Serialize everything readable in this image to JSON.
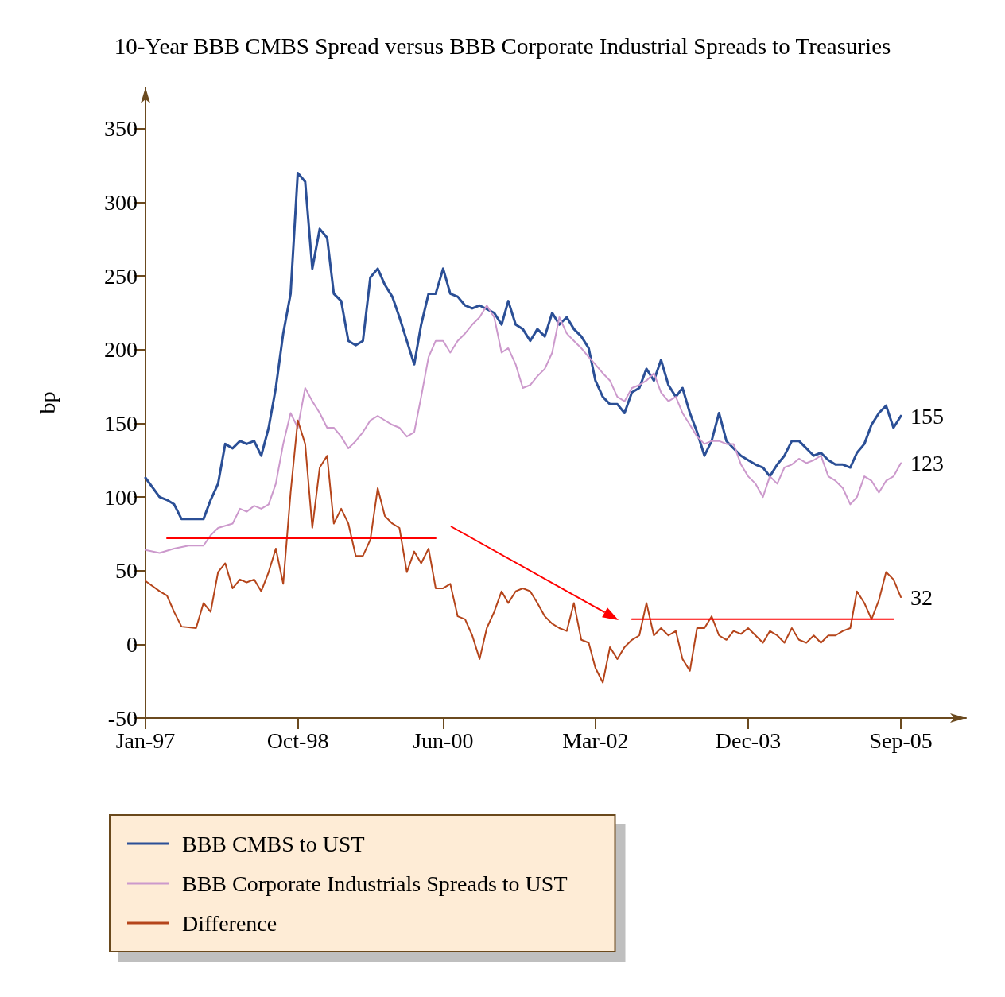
{
  "chart_data": {
    "type": "line",
    "title": "10-Year BBB CMBS Spread versus BBB Corporate Industrial Spreads to Treasuries",
    "ylabel": "bp",
    "xlim": [
      "1997-01",
      "2006-06"
    ],
    "xticks": [
      {
        "value": "1997-01",
        "label": "Jan-97"
      },
      {
        "value": "1998-10",
        "label": "Oct-98"
      },
      {
        "value": "2000-06",
        "label": "Jun-00"
      },
      {
        "value": "2002-03",
        "label": "Mar-02"
      },
      {
        "value": "2003-12",
        "label": "Dec-03"
      },
      {
        "value": "2005-09",
        "label": "Sep-05"
      }
    ],
    "ylim": [
      -50,
      378
    ],
    "yticks": [
      -50,
      0,
      50,
      100,
      150,
      200,
      250,
      300,
      350
    ],
    "grid": false,
    "legend": "bottom left",
    "marker": "none",
    "line_style": "solid",
    "annotations": [
      {
        "text": "155",
        "x": "2005-09",
        "y": 155
      },
      {
        "text": "123",
        "x": "2005-09",
        "y": 123
      },
      {
        "text": "32",
        "x": "2005-09",
        "y": 32
      }
    ],
    "series": [
      {
        "name": "BBB CMBS to UST",
        "color": "#2b4f96",
        "x": [
          "1997-01",
          "1997-03",
          "1997-04",
          "1997-05",
          "1997-06",
          "1997-09",
          "1997-10",
          "1997-11",
          "1997-12",
          "1998-01",
          "1998-02",
          "1998-03",
          "1998-04",
          "1998-05",
          "1998-06",
          "1998-07",
          "1998-08",
          "1998-09",
          "1998-10",
          "1998-11",
          "1998-12",
          "1999-01",
          "1999-02",
          "1999-03",
          "1999-04",
          "1999-05",
          "1999-06",
          "1999-07",
          "1999-08",
          "1999-09",
          "1999-10",
          "1999-11",
          "1999-12",
          "2000-01",
          "2000-02",
          "2000-03",
          "2000-04",
          "2000-05",
          "2000-06",
          "2000-07",
          "2000-08",
          "2000-09",
          "2000-10",
          "2000-11",
          "2001-01",
          "2001-02",
          "2001-03",
          "2001-04",
          "2001-05",
          "2001-06",
          "2001-07",
          "2001-08",
          "2001-09",
          "2001-10",
          "2001-11",
          "2001-12",
          "2002-01",
          "2002-02",
          "2002-03",
          "2002-04",
          "2002-05",
          "2002-06",
          "2002-07",
          "2002-08",
          "2002-09",
          "2002-10",
          "2002-11",
          "2002-12",
          "2003-01",
          "2003-02",
          "2003-03",
          "2003-04",
          "2003-05",
          "2003-06",
          "2003-07",
          "2003-08",
          "2003-09",
          "2003-10",
          "2003-11",
          "2003-12",
          "2004-01",
          "2004-02",
          "2004-03",
          "2004-04",
          "2004-05",
          "2004-06",
          "2004-07",
          "2004-08",
          "2004-09",
          "2004-10",
          "2004-11",
          "2004-12",
          "2005-01",
          "2005-02",
          "2005-03",
          "2005-04",
          "2005-05",
          "2005-06",
          "2005-07",
          "2005-08",
          "2005-09"
        ],
        "values": [
          113,
          100,
          98,
          95,
          85,
          85,
          98,
          109,
          136,
          133,
          138,
          136,
          138,
          128,
          147,
          174,
          211,
          238,
          320,
          314,
          255,
          282,
          276,
          238,
          233,
          206,
          203,
          206,
          249,
          255,
          244,
          236,
          222,
          206,
          190,
          217,
          238,
          238,
          255,
          238,
          236,
          230,
          228,
          230,
          225,
          217,
          233,
          217,
          214,
          206,
          214,
          209,
          225,
          217,
          222,
          214,
          209,
          201,
          179,
          168,
          163,
          163,
          157,
          171,
          174,
          187,
          179,
          193,
          176,
          168,
          174,
          157,
          144,
          128,
          138,
          157,
          138,
          133,
          128,
          125,
          122,
          120,
          114,
          122,
          128,
          138,
          138,
          133,
          128,
          130,
          125,
          122,
          122,
          120,
          130,
          136,
          149,
          157,
          162,
          147,
          155
        ]
      },
      {
        "name": "BBB Corporate Industrials Spreads to UST",
        "color": "#cc99cc",
        "x": [
          "1997-01",
          "1997-03",
          "1997-05",
          "1997-07",
          "1997-09",
          "1997-10",
          "1997-11",
          "1998-01",
          "1998-02",
          "1998-03",
          "1998-04",
          "1998-05",
          "1998-06",
          "1998-07",
          "1998-08",
          "1998-09",
          "1998-10",
          "1998-11",
          "1998-12",
          "1999-01",
          "1999-02",
          "1999-03",
          "1999-04",
          "1999-05",
          "1999-06",
          "1999-07",
          "1999-08",
          "1999-09",
          "1999-10",
          "1999-11",
          "1999-12",
          "2000-01",
          "2000-02",
          "2000-03",
          "2000-04",
          "2000-05",
          "2000-06",
          "2000-07",
          "2000-08",
          "2000-09",
          "2000-10",
          "2000-11",
          "2000-12",
          "2001-01",
          "2001-02",
          "2001-03",
          "2001-04",
          "2001-05",
          "2001-06",
          "2001-07",
          "2001-08",
          "2001-09",
          "2001-10",
          "2001-11",
          "2001-12",
          "2002-01",
          "2002-02",
          "2002-03",
          "2002-04",
          "2002-05",
          "2002-06",
          "2002-07",
          "2002-08",
          "2002-09",
          "2002-10",
          "2002-11",
          "2002-12",
          "2003-01",
          "2003-02",
          "2003-03",
          "2003-04",
          "2003-05",
          "2003-06",
          "2003-07",
          "2003-08",
          "2003-09",
          "2003-10",
          "2003-11",
          "2003-12",
          "2004-01",
          "2004-02",
          "2004-03",
          "2004-04",
          "2004-05",
          "2004-06",
          "2004-07",
          "2004-08",
          "2004-09",
          "2004-10",
          "2004-11",
          "2004-12",
          "2005-01",
          "2005-02",
          "2005-03",
          "2005-04",
          "2005-05",
          "2005-06",
          "2005-07",
          "2005-08",
          "2005-09"
        ],
        "values": [
          64,
          62,
          65,
          67,
          67,
          74,
          79,
          82,
          92,
          90,
          94,
          92,
          95,
          109,
          136,
          157,
          147,
          174,
          165,
          157,
          147,
          147,
          141,
          133,
          138,
          144,
          152,
          155,
          152,
          149,
          147,
          141,
          144,
          168,
          195,
          206,
          206,
          198,
          206,
          211,
          217,
          222,
          230,
          222,
          198,
          201,
          190,
          174,
          176,
          182,
          187,
          198,
          222,
          211,
          206,
          201,
          195,
          190,
          184,
          179,
          168,
          165,
          174,
          176,
          179,
          184,
          171,
          165,
          168,
          157,
          149,
          141,
          136,
          138,
          138,
          136,
          136,
          122,
          114,
          109,
          100,
          114,
          109,
          120,
          122,
          126,
          123,
          125,
          128,
          114,
          111,
          106,
          95,
          100,
          114,
          111,
          103,
          111,
          114,
          123
        ]
      },
      {
        "name": "Difference",
        "color": "#b5451b",
        "x": [
          "1997-01",
          "1997-03",
          "1997-04",
          "1997-05",
          "1997-06",
          "1997-08",
          "1997-09",
          "1997-10",
          "1997-11",
          "1997-12",
          "1998-01",
          "1998-02",
          "1998-03",
          "1998-04",
          "1998-05",
          "1998-06",
          "1998-07",
          "1998-08",
          "1998-09",
          "1998-10",
          "1998-11",
          "1998-12",
          "1999-01",
          "1999-02",
          "1999-03",
          "1999-04",
          "1999-05",
          "1999-06",
          "1999-07",
          "1999-08",
          "1999-09",
          "1999-10",
          "1999-11",
          "1999-12",
          "2000-01",
          "2000-02",
          "2000-03",
          "2000-04",
          "2000-05",
          "2000-06",
          "2000-07",
          "2000-08",
          "2000-09",
          "2000-10",
          "2000-11",
          "2000-12",
          "2001-01",
          "2001-02",
          "2001-03",
          "2001-04",
          "2001-05",
          "2001-06",
          "2001-07",
          "2001-08",
          "2001-09",
          "2001-10",
          "2001-11",
          "2001-12",
          "2002-01",
          "2002-02",
          "2002-03",
          "2002-04",
          "2002-05",
          "2002-06",
          "2002-07",
          "2002-08",
          "2002-09",
          "2002-10",
          "2002-11",
          "2002-12",
          "2003-01",
          "2003-02",
          "2003-03",
          "2003-04",
          "2003-05",
          "2003-06",
          "2003-07",
          "2003-08",
          "2003-09",
          "2003-10",
          "2003-11",
          "2003-12",
          "2004-01",
          "2004-02",
          "2004-03",
          "2004-04",
          "2004-05",
          "2004-06",
          "2004-07",
          "2004-08",
          "2004-09",
          "2004-10",
          "2004-11",
          "2004-12",
          "2005-01",
          "2005-02",
          "2005-03",
          "2005-04",
          "2005-05",
          "2005-06",
          "2005-07",
          "2005-08",
          "2005-09"
        ],
        "values": [
          43,
          36,
          33,
          22,
          12,
          11,
          28,
          22,
          49,
          55,
          38,
          44,
          42,
          44,
          36,
          49,
          65,
          41,
          103,
          152,
          136,
          79,
          120,
          128,
          82,
          92,
          82,
          60,
          60,
          71,
          106,
          87,
          82,
          79,
          49,
          63,
          55,
          65,
          38,
          38,
          41,
          19,
          17,
          6,
          -10,
          11,
          22,
          36,
          28,
          36,
          38,
          36,
          28,
          19,
          14,
          11,
          9,
          28,
          3,
          1,
          -16,
          -26,
          -2,
          -10,
          -2,
          3,
          6,
          28,
          6,
          11,
          6,
          9,
          -10,
          -18,
          11,
          11,
          19,
          6,
          3,
          9,
          7,
          11,
          6,
          1,
          9,
          6,
          1,
          11,
          3,
          1,
          6,
          1,
          6,
          6,
          9,
          11,
          36,
          28,
          17,
          30,
          49,
          44,
          32
        ]
      },
      {
        "type": "line",
        "color": "#ff0000",
        "x": [
          "1997-04",
          "2000-05"
        ],
        "values": [
          72,
          72
        ]
      },
      {
        "type": "line",
        "color": "#ff0000",
        "x": [
          "2002-08",
          "2005-08"
        ],
        "values": [
          17,
          17
        ]
      }
    ]
  }
}
